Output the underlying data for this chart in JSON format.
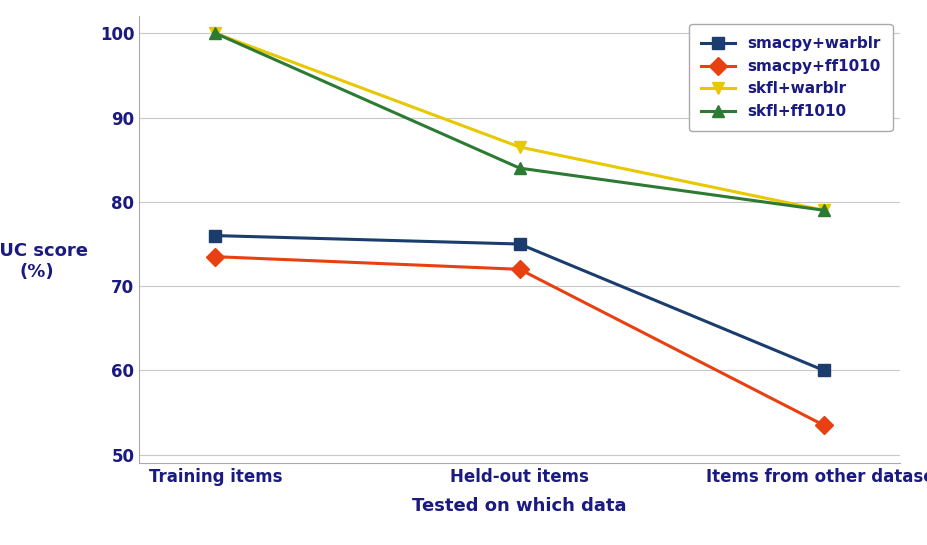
{
  "x_labels": [
    "Training items",
    "Held-out items",
    "Items from other dataset"
  ],
  "x_positions": [
    0,
    1,
    2
  ],
  "series": [
    {
      "label": "smacpy+warblr",
      "color": "#1a3d6e",
      "marker": "s",
      "values": [
        76,
        75,
        60
      ]
    },
    {
      "label": "smacpy+ff1010",
      "color": "#e84010",
      "marker": "D",
      "values": [
        73.5,
        72,
        53.5
      ]
    },
    {
      "label": "skfl+warblr",
      "color": "#e8c800",
      "marker": "v",
      "values": [
        100,
        86.5,
        79
      ]
    },
    {
      "label": "skfl+ff1010",
      "color": "#2d7a32",
      "marker": "^",
      "values": [
        100,
        84,
        79
      ]
    }
  ],
  "xlabel": "Tested on which data",
  "ylabel_line1": "AUC score",
  "ylabel_line2": "(%)",
  "ylim": [
    49,
    102
  ],
  "yticks": [
    50,
    60,
    70,
    80,
    90,
    100
  ],
  "linewidth": 2.2,
  "markersize": 9,
  "background_color": "#ffffff",
  "grid_color": "#c8c8c8",
  "text_color": "#1a1a80",
  "label_fontsize": 13,
  "tick_fontsize": 12
}
